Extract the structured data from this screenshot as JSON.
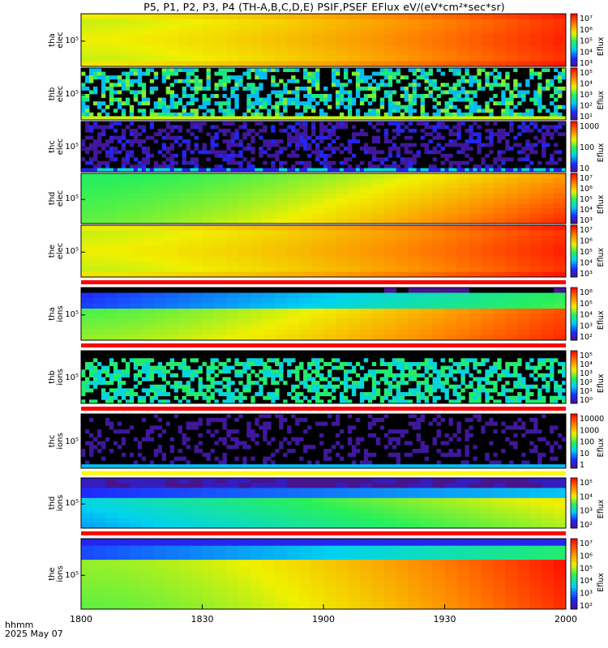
{
  "title": "P5, P1, P2, P3, P4 (TH-A,B,C,D,E) PSIF,PSEF EFlux eV/(eV*cm²*sec*sr)",
  "footer": {
    "line1": "hhmm",
    "line2": "2025 May 07"
  },
  "chart_data": {
    "type": "heatmap",
    "xaxis": {
      "ticks": [
        "1800",
        "1830",
        "1900",
        "1930",
        "2000"
      ],
      "range": [
        "18:00",
        "20:00"
      ]
    },
    "colorbar_label": "Eflux",
    "panels": [
      {
        "id": "tha-elec",
        "ylabel": [
          "tha",
          "elec"
        ],
        "ytick": "10⁵",
        "kind": "smooth",
        "cb_ticks": [
          "10⁷",
          "10⁶",
          "10⁵",
          "10⁴",
          "10³"
        ]
      },
      {
        "id": "thb-elec",
        "ylabel": [
          "thb",
          "elec"
        ],
        "ytick": "10⁵",
        "kind": "noise-b",
        "cb_ticks": [
          "10⁵",
          "10⁴",
          "10³",
          "10²",
          "10¹"
        ]
      },
      {
        "id": "thc-elec",
        "ylabel": [
          "thc",
          "elec"
        ],
        "ytick": "10⁵",
        "kind": "noise-c",
        "cb_ticks": [
          "1000",
          "100",
          "10"
        ]
      },
      {
        "id": "thd-elec",
        "ylabel": [
          "thd",
          "elec"
        ],
        "ytick": "10⁵",
        "kind": "smooth-d",
        "cb_ticks": [
          "10⁷",
          "10⁶",
          "10⁵",
          "10⁴",
          "10³"
        ]
      },
      {
        "id": "the-elec",
        "ylabel": [
          "the",
          "elec"
        ],
        "ytick": "10⁵",
        "kind": "smooth",
        "cb_ticks": [
          "10⁷",
          "10⁶",
          "10⁵",
          "10⁴",
          "10³"
        ]
      },
      {
        "id": "tha-ions",
        "ylabel": [
          "tha",
          "ions"
        ],
        "ytick": "10⁵",
        "kind": "ions-a",
        "cb_ticks": [
          "10⁶",
          "10⁵",
          "10⁴",
          "10³",
          "10²"
        ]
      },
      {
        "id": "thb-ions",
        "ylabel": [
          "thb",
          "ions"
        ],
        "ytick": "10⁵",
        "kind": "noise-bi",
        "cb_ticks": [
          "10⁵",
          "10⁴",
          "10³",
          "10²",
          "10¹",
          "10⁰"
        ]
      },
      {
        "id": "thc-ions",
        "ylabel": [
          "thc",
          "ions"
        ],
        "ytick": "10⁵",
        "kind": "noise-ci",
        "cb_ticks": [
          "10000",
          "1000",
          "100",
          "10",
          "1"
        ]
      },
      {
        "id": "thd-ions",
        "ylabel": [
          "thd",
          "ions"
        ],
        "ytick": "10⁵",
        "kind": "ions-d",
        "cb_ticks": [
          "10⁵",
          "10⁴",
          "10³",
          "10²"
        ]
      },
      {
        "id": "the-ions",
        "ylabel": [
          "the",
          "ions"
        ],
        "ytick": "10⁵",
        "kind": "ions-e",
        "cb_ticks": [
          "10⁷",
          "10⁶",
          "10⁵",
          "10⁴",
          "10³",
          "10²"
        ]
      }
    ]
  }
}
